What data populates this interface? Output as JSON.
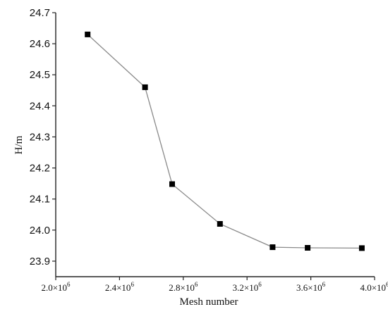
{
  "chart_data": {
    "type": "line",
    "title": "",
    "xlabel": "Mesh number",
    "ylabel": "H/m",
    "xlim": [
      2000000,
      4000000
    ],
    "ylim": [
      23.85,
      24.7
    ],
    "grid": false,
    "x_ticks": [
      {
        "value": 2000000,
        "mantissa": "2.0",
        "exponent": "6"
      },
      {
        "value": 2400000,
        "mantissa": "2.4",
        "exponent": "6"
      },
      {
        "value": 2800000,
        "mantissa": "2.8",
        "exponent": "6"
      },
      {
        "value": 3200000,
        "mantissa": "3.2",
        "exponent": "6"
      },
      {
        "value": 3600000,
        "mantissa": "3.6",
        "exponent": "6"
      },
      {
        "value": 4000000,
        "mantissa": "4.0",
        "exponent": "6"
      }
    ],
    "y_ticks": [
      {
        "value": 23.9,
        "label": "23.9"
      },
      {
        "value": 24.0,
        "label": "24.0"
      },
      {
        "value": 24.1,
        "label": "24.1"
      },
      {
        "value": 24.2,
        "label": "24.2"
      },
      {
        "value": 24.3,
        "label": "24.3"
      },
      {
        "value": 24.4,
        "label": "24.4"
      },
      {
        "value": 24.5,
        "label": "24.5"
      },
      {
        "value": 24.6,
        "label": "24.6"
      },
      {
        "value": 24.7,
        "label": "24.7"
      }
    ],
    "series": [
      {
        "line_color": "#8a8a8a",
        "marker_color": "#000000",
        "marker": "square",
        "x": [
          2200000,
          2560000,
          2730000,
          3030000,
          3360000,
          3580000,
          3920000
        ],
        "y": [
          24.63,
          24.46,
          24.148,
          24.02,
          23.945,
          23.943,
          23.942
        ]
      }
    ]
  }
}
